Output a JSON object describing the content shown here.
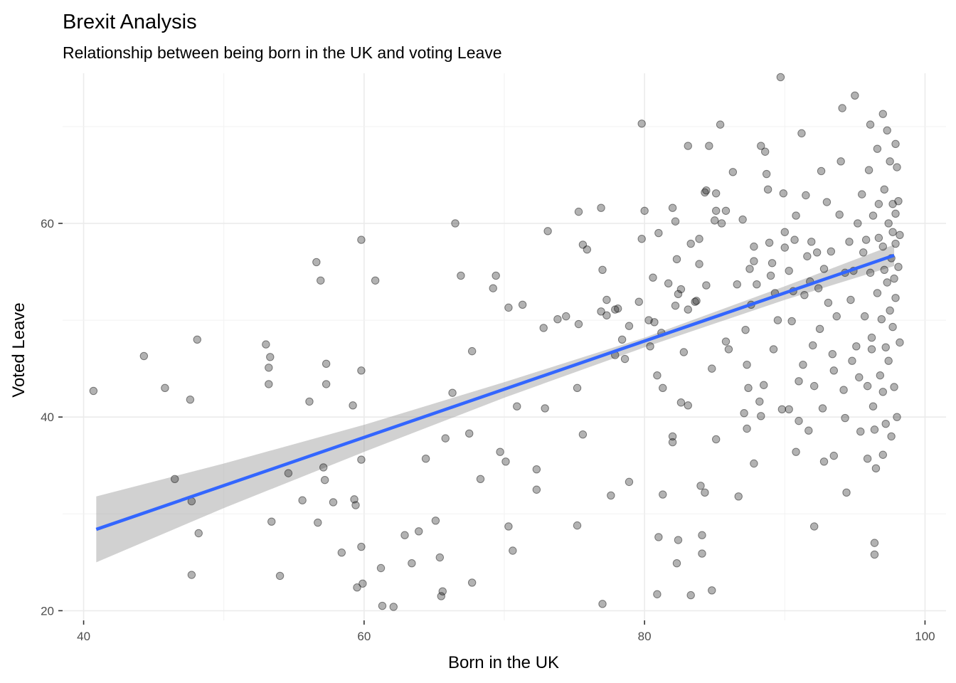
{
  "chart_data": {
    "type": "scatter",
    "title": "Brexit Analysis",
    "subtitle": "Relationship between being born in the UK and voting Leave",
    "xlabel": "Born in the UK",
    "ylabel": "Voted Leave",
    "xlim": [
      38.5,
      101.5
    ],
    "ylim": [
      19,
      75.5
    ],
    "x_ticks": [
      40,
      60,
      80,
      100
    ],
    "y_ticks": [
      20,
      40,
      60
    ],
    "grid": true,
    "point_color": "#000000",
    "point_opacity": 0.3,
    "trend": {
      "method": "linear",
      "color": "#3366FF",
      "ribbon_color": "#999999",
      "points": [
        {
          "x": 40.9,
          "y": 28.4,
          "lo": 25.0,
          "hi": 31.8
        },
        {
          "x": 50,
          "y": 32.9,
          "lo": 30.6,
          "hi": 35.2
        },
        {
          "x": 60,
          "y": 37.8,
          "lo": 36.4,
          "hi": 39.2
        },
        {
          "x": 70,
          "y": 42.8,
          "lo": 42.0,
          "hi": 43.6
        },
        {
          "x": 80,
          "y": 47.7,
          "lo": 47.2,
          "hi": 48.2
        },
        {
          "x": 90,
          "y": 52.8,
          "lo": 52.1,
          "hi": 53.5
        },
        {
          "x": 97.8,
          "y": 56.7,
          "lo": 55.6,
          "hi": 57.8
        }
      ]
    },
    "points": [
      [
        40.7,
        42.7
      ],
      [
        44.3,
        46.3
      ],
      [
        45.8,
        43.0
      ],
      [
        46.5,
        33.6
      ],
      [
        47.6,
        41.8
      ],
      [
        47.7,
        31.3
      ],
      [
        47.7,
        23.7
      ],
      [
        48.1,
        48.0
      ],
      [
        48.2,
        28.0
      ],
      [
        53.0,
        47.5
      ],
      [
        53.2,
        45.1
      ],
      [
        53.3,
        46.2
      ],
      [
        53.2,
        43.4
      ],
      [
        53.4,
        29.2
      ],
      [
        54.0,
        23.6
      ],
      [
        54.6,
        34.2
      ],
      [
        55.6,
        31.4
      ],
      [
        56.1,
        41.6
      ],
      [
        56.6,
        56.0
      ],
      [
        56.9,
        54.1
      ],
      [
        56.7,
        29.1
      ],
      [
        57.1,
        34.8
      ],
      [
        57.2,
        33.5
      ],
      [
        57.3,
        45.5
      ],
      [
        57.3,
        43.4
      ],
      [
        57.8,
        31.2
      ],
      [
        58.4,
        26.0
      ],
      [
        59.2,
        41.2
      ],
      [
        59.3,
        31.5
      ],
      [
        59.4,
        30.9
      ],
      [
        59.5,
        22.4
      ],
      [
        59.8,
        58.3
      ],
      [
        59.8,
        44.8
      ],
      [
        59.8,
        35.6
      ],
      [
        59.8,
        26.6
      ],
      [
        59.9,
        22.8
      ],
      [
        60.8,
        54.1
      ],
      [
        61.2,
        24.4
      ],
      [
        61.3,
        20.5
      ],
      [
        62.1,
        20.4
      ],
      [
        62.9,
        27.8
      ],
      [
        63.4,
        24.9
      ],
      [
        63.9,
        28.2
      ],
      [
        64.4,
        35.7
      ],
      [
        65.1,
        29.3
      ],
      [
        65.4,
        25.5
      ],
      [
        65.5,
        21.5
      ],
      [
        65.6,
        22.0
      ],
      [
        65.8,
        37.8
      ],
      [
        66.3,
        42.5
      ],
      [
        66.5,
        60.0
      ],
      [
        66.9,
        54.6
      ],
      [
        67.5,
        38.3
      ],
      [
        67.7,
        46.8
      ],
      [
        67.7,
        22.9
      ],
      [
        68.3,
        33.6
      ],
      [
        69.2,
        53.3
      ],
      [
        69.4,
        54.6
      ],
      [
        69.7,
        36.4
      ],
      [
        70.1,
        35.4
      ],
      [
        70.3,
        51.3
      ],
      [
        70.3,
        28.7
      ],
      [
        70.6,
        26.2
      ],
      [
        70.9,
        41.1
      ],
      [
        71.3,
        51.6
      ],
      [
        72.3,
        34.6
      ],
      [
        72.3,
        32.5
      ],
      [
        72.8,
        49.2
      ],
      [
        72.9,
        40.9
      ],
      [
        73.1,
        59.2
      ],
      [
        73.8,
        50.1
      ],
      [
        74.4,
        50.4
      ],
      [
        75.3,
        61.2
      ],
      [
        75.2,
        43.0
      ],
      [
        75.2,
        28.8
      ],
      [
        75.3,
        49.6
      ],
      [
        75.6,
        57.8
      ],
      [
        75.6,
        38.2
      ],
      [
        75.9,
        57.3
      ],
      [
        76.9,
        61.6
      ],
      [
        76.9,
        50.9
      ],
      [
        77.0,
        55.2
      ],
      [
        77.0,
        20.7
      ],
      [
        77.3,
        52.1
      ],
      [
        77.3,
        50.5
      ],
      [
        77.6,
        31.9
      ],
      [
        77.9,
        46.4
      ],
      [
        77.9,
        51.1
      ],
      [
        78.1,
        51.2
      ],
      [
        78.4,
        48.0
      ],
      [
        78.6,
        46.0
      ],
      [
        78.9,
        49.4
      ],
      [
        78.9,
        33.3
      ],
      [
        79.6,
        51.9
      ],
      [
        79.8,
        58.4
      ],
      [
        79.8,
        70.3
      ],
      [
        80.0,
        61.3
      ],
      [
        80.3,
        50.0
      ],
      [
        80.4,
        47.3
      ],
      [
        80.6,
        54.4
      ],
      [
        80.7,
        49.8
      ],
      [
        80.9,
        44.3
      ],
      [
        80.9,
        21.7
      ],
      [
        81.0,
        59.0
      ],
      [
        81.0,
        27.6
      ],
      [
        81.2,
        48.7
      ],
      [
        81.3,
        43.0
      ],
      [
        81.3,
        32.0
      ],
      [
        81.7,
        53.8
      ],
      [
        82.0,
        61.6
      ],
      [
        82.0,
        38.0
      ],
      [
        82.0,
        37.4
      ],
      [
        82.2,
        60.2
      ],
      [
        82.2,
        51.5
      ],
      [
        82.3,
        56.3
      ],
      [
        82.4,
        52.7
      ],
      [
        82.3,
        24.9
      ],
      [
        82.4,
        27.3
      ],
      [
        82.6,
        53.2
      ],
      [
        82.6,
        41.5
      ],
      [
        82.8,
        46.7
      ],
      [
        83.1,
        68.0
      ],
      [
        83.1,
        51.1
      ],
      [
        83.1,
        41.2
      ],
      [
        83.3,
        57.9
      ],
      [
        83.3,
        21.6
      ],
      [
        83.6,
        51.9
      ],
      [
        83.7,
        52.0
      ],
      [
        83.9,
        55.8
      ],
      [
        83.9,
        58.4
      ],
      [
        84.0,
        32.9
      ],
      [
        84.1,
        25.9
      ],
      [
        84.1,
        27.8
      ],
      [
        84.3,
        63.2
      ],
      [
        84.4,
        63.4
      ],
      [
        84.4,
        53.6
      ],
      [
        84.3,
        32.2
      ],
      [
        84.6,
        68.0
      ],
      [
        84.8,
        45.0
      ],
      [
        84.8,
        22.1
      ],
      [
        85.0,
        60.3
      ],
      [
        85.1,
        61.3
      ],
      [
        85.1,
        63.1
      ],
      [
        85.1,
        37.7
      ],
      [
        85.4,
        70.2
      ],
      [
        85.5,
        60.0
      ],
      [
        85.8,
        61.3
      ],
      [
        85.8,
        47.8
      ],
      [
        86.0,
        47.0
      ],
      [
        86.3,
        65.3
      ],
      [
        86.6,
        53.7
      ],
      [
        86.7,
        31.8
      ],
      [
        87.0,
        60.4
      ],
      [
        87.1,
        40.4
      ],
      [
        87.2,
        49.0
      ],
      [
        87.3,
        45.4
      ],
      [
        87.3,
        38.8
      ],
      [
        87.4,
        43.0
      ],
      [
        87.5,
        55.3
      ],
      [
        87.6,
        51.6
      ],
      [
        87.8,
        57.6
      ],
      [
        87.8,
        56.1
      ],
      [
        87.8,
        35.2
      ],
      [
        88.0,
        53.7
      ],
      [
        88.2,
        41.6
      ],
      [
        88.3,
        68.0
      ],
      [
        88.3,
        40.1
      ],
      [
        88.5,
        43.3
      ],
      [
        88.6,
        67.4
      ],
      [
        88.7,
        65.1
      ],
      [
        88.8,
        63.5
      ],
      [
        88.9,
        58.0
      ],
      [
        89.0,
        54.6
      ],
      [
        89.1,
        55.9
      ],
      [
        89.2,
        47.0
      ],
      [
        89.3,
        52.8
      ],
      [
        89.5,
        50.0
      ],
      [
        89.7,
        75.1
      ],
      [
        89.8,
        40.8
      ],
      [
        89.9,
        63.1
      ],
      [
        90.0,
        57.5
      ],
      [
        90.0,
        59.1
      ],
      [
        90.3,
        55.1
      ],
      [
        90.3,
        40.8
      ],
      [
        90.5,
        49.9
      ],
      [
        90.6,
        53.0
      ],
      [
        90.7,
        58.3
      ],
      [
        90.8,
        60.8
      ],
      [
        90.8,
        36.4
      ],
      [
        91.0,
        43.7
      ],
      [
        91.0,
        39.6
      ],
      [
        91.2,
        69.3
      ],
      [
        91.3,
        45.4
      ],
      [
        91.4,
        52.6
      ],
      [
        91.5,
        62.9
      ],
      [
        91.6,
        56.6
      ],
      [
        91.7,
        38.6
      ],
      [
        91.8,
        54.0
      ],
      [
        91.9,
        58.1
      ],
      [
        92.0,
        47.4
      ],
      [
        92.1,
        43.2
      ],
      [
        92.1,
        28.7
      ],
      [
        92.3,
        57.0
      ],
      [
        92.4,
        53.3
      ],
      [
        92.5,
        49.1
      ],
      [
        92.6,
        65.4
      ],
      [
        92.7,
        40.9
      ],
      [
        92.8,
        55.3
      ],
      [
        92.8,
        35.4
      ],
      [
        93.0,
        62.2
      ],
      [
        93.1,
        51.8
      ],
      [
        93.3,
        57.1
      ],
      [
        93.4,
        46.5
      ],
      [
        93.5,
        44.8
      ],
      [
        93.5,
        36.0
      ],
      [
        93.7,
        50.4
      ],
      [
        93.9,
        60.9
      ],
      [
        94.0,
        66.4
      ],
      [
        94.1,
        71.9
      ],
      [
        94.2,
        42.8
      ],
      [
        94.3,
        54.9
      ],
      [
        94.3,
        39.9
      ],
      [
        94.4,
        32.2
      ],
      [
        94.6,
        58.1
      ],
      [
        94.7,
        52.1
      ],
      [
        94.8,
        45.8
      ],
      [
        94.9,
        55.1
      ],
      [
        95.0,
        73.2
      ],
      [
        95.1,
        47.3
      ],
      [
        95.2,
        60.0
      ],
      [
        95.3,
        44.1
      ],
      [
        95.4,
        38.5
      ],
      [
        95.5,
        63.0
      ],
      [
        95.6,
        57.0
      ],
      [
        95.7,
        50.4
      ],
      [
        95.8,
        58.3
      ],
      [
        95.9,
        43.2
      ],
      [
        95.9,
        35.7
      ],
      [
        96.0,
        65.5
      ],
      [
        96.1,
        70.2
      ],
      [
        96.1,
        54.9
      ],
      [
        96.2,
        48.2
      ],
      [
        96.2,
        47.0
      ],
      [
        96.3,
        60.8
      ],
      [
        96.3,
        41.1
      ],
      [
        96.4,
        38.7
      ],
      [
        96.4,
        27.0
      ],
      [
        96.4,
        25.8
      ],
      [
        96.5,
        34.7
      ],
      [
        96.6,
        67.7
      ],
      [
        96.6,
        52.8
      ],
      [
        96.7,
        58.5
      ],
      [
        96.7,
        62.0
      ],
      [
        96.8,
        44.3
      ],
      [
        96.9,
        50.1
      ],
      [
        97.0,
        71.3
      ],
      [
        97.0,
        57.6
      ],
      [
        97.0,
        36.1
      ],
      [
        97.0,
        42.6
      ],
      [
        97.1,
        55.2
      ],
      [
        97.1,
        63.5
      ],
      [
        97.2,
        47.2
      ],
      [
        97.2,
        39.3
      ],
      [
        97.3,
        69.6
      ],
      [
        97.3,
        53.9
      ],
      [
        97.4,
        45.8
      ],
      [
        97.4,
        60.0
      ],
      [
        97.5,
        51.0
      ],
      [
        97.5,
        66.4
      ],
      [
        97.6,
        56.4
      ],
      [
        97.6,
        38.0
      ],
      [
        97.7,
        62.0
      ],
      [
        97.7,
        59.1
      ],
      [
        97.7,
        49.3
      ],
      [
        97.8,
        54.3
      ],
      [
        97.8,
        43.1
      ],
      [
        97.9,
        57.9
      ],
      [
        97.9,
        68.2
      ],
      [
        97.9,
        61.0
      ],
      [
        97.9,
        52.3
      ],
      [
        98.0,
        65.8
      ],
      [
        98.0,
        40.0
      ],
      [
        98.1,
        62.3
      ],
      [
        98.1,
        55.5
      ],
      [
        98.2,
        47.7
      ],
      [
        98.2,
        58.8
      ]
    ]
  }
}
